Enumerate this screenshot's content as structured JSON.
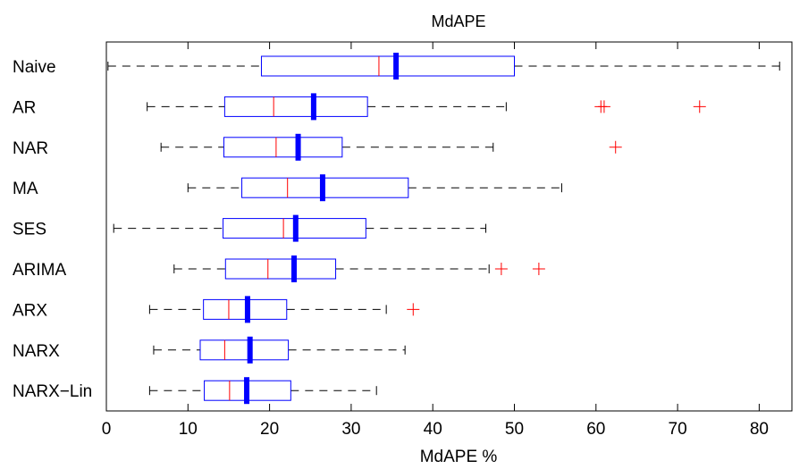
{
  "chart_data": {
    "type": "boxplot",
    "orientation": "horizontal",
    "title": "MdAPE",
    "xlabel": "MdAPE %",
    "ylabel": "",
    "xlim": [
      0,
      86
    ],
    "xticks": [
      0,
      10,
      20,
      30,
      40,
      50,
      60,
      70,
      80
    ],
    "grid": false,
    "colors": {
      "box": "#0000ff",
      "median": "#ff0000",
      "mean": "#0000ff",
      "whisker": "#000000",
      "outlier": "#ff0000"
    },
    "series": [
      {
        "name": "Naive",
        "whisker_low": 0.2,
        "q1": 19.0,
        "median": 33.4,
        "mean": 35.5,
        "q3": 50.0,
        "whisker_high": 82.5,
        "outliers": []
      },
      {
        "name": "AR",
        "whisker_low": 5.0,
        "q1": 14.5,
        "median": 20.5,
        "mean": 25.4,
        "q3": 32.0,
        "whisker_high": 49.0,
        "outliers": [
          60.6,
          61.0,
          72.7
        ]
      },
      {
        "name": "NAR",
        "whisker_low": 6.7,
        "q1": 14.4,
        "median": 20.8,
        "mean": 23.5,
        "q3": 28.9,
        "whisker_high": 47.4,
        "outliers": [
          62.4
        ]
      },
      {
        "name": "MA",
        "whisker_low": 10.0,
        "q1": 16.6,
        "median": 22.2,
        "mean": 26.5,
        "q3": 37.0,
        "whisker_high": 55.8,
        "outliers": []
      },
      {
        "name": "SES",
        "whisker_low": 0.9,
        "q1": 14.3,
        "median": 21.7,
        "mean": 23.2,
        "q3": 31.8,
        "whisker_high": 46.5,
        "outliers": []
      },
      {
        "name": "ARIMA",
        "whisker_low": 8.3,
        "q1": 14.6,
        "median": 19.8,
        "mean": 23.0,
        "q3": 28.1,
        "whisker_high": 46.9,
        "outliers": [
          48.4,
          53.0
        ]
      },
      {
        "name": "ARX",
        "whisker_low": 5.3,
        "q1": 11.9,
        "median": 15.0,
        "mean": 17.3,
        "q3": 22.1,
        "whisker_high": 34.3,
        "outliers": [
          37.6
        ]
      },
      {
        "name": "NARX",
        "whisker_low": 5.8,
        "q1": 11.5,
        "median": 14.5,
        "mean": 17.6,
        "q3": 22.3,
        "whisker_high": 36.6,
        "outliers": []
      },
      {
        "name": "NARX−Lin",
        "whisker_low": 5.3,
        "q1": 12.0,
        "median": 15.1,
        "mean": 17.2,
        "q3": 22.6,
        "whisker_high": 33.1,
        "outliers": []
      }
    ]
  }
}
